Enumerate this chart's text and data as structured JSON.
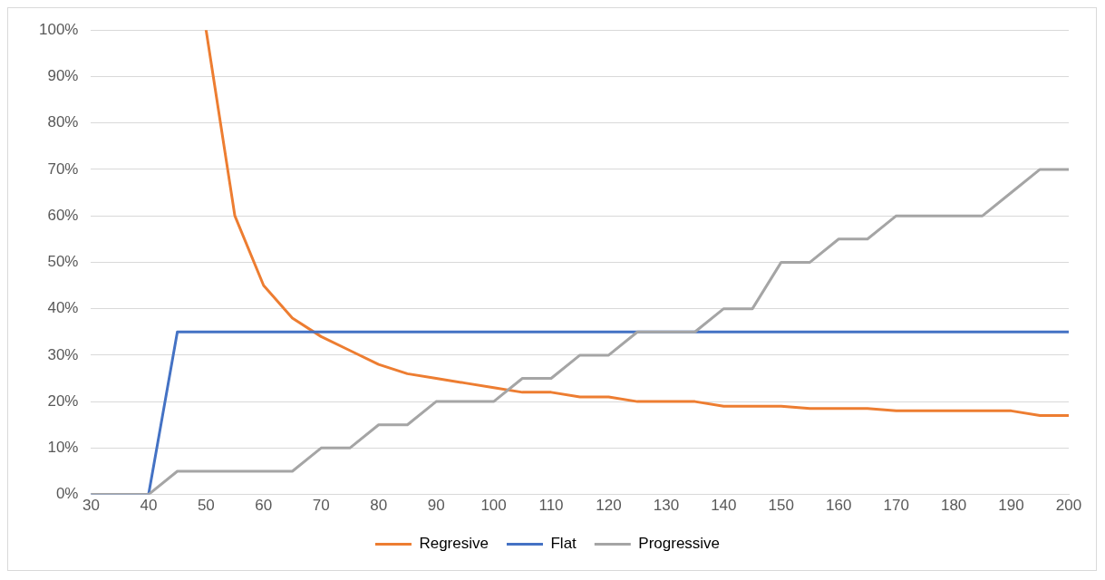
{
  "chart_data": {
    "type": "line",
    "x": [
      30,
      35,
      40,
      45,
      50,
      55,
      60,
      65,
      70,
      75,
      80,
      85,
      90,
      95,
      100,
      105,
      110,
      115,
      120,
      125,
      130,
      135,
      140,
      145,
      150,
      155,
      160,
      165,
      170,
      175,
      180,
      185,
      190,
      195,
      200
    ],
    "series": [
      {
        "name": "Regresive",
        "color": "#ed7d31",
        "values": [
          null,
          null,
          null,
          null,
          100,
          60,
          45,
          38,
          34,
          31,
          28,
          26,
          25,
          24,
          23,
          22,
          22,
          21,
          21,
          20,
          20,
          20,
          19,
          19,
          19,
          18.5,
          18.5,
          18.5,
          18,
          18,
          18,
          18,
          18,
          17,
          17
        ]
      },
      {
        "name": "Flat",
        "color": "#4472c4",
        "values": [
          0,
          0,
          0,
          35,
          35,
          35,
          35,
          35,
          35,
          35,
          35,
          35,
          35,
          35,
          35,
          35,
          35,
          35,
          35,
          35,
          35,
          35,
          35,
          35,
          35,
          35,
          35,
          35,
          35,
          35,
          35,
          35,
          35,
          35,
          35
        ]
      },
      {
        "name": "Progressive",
        "color": "#a5a5a5",
        "values": [
          0,
          0,
          0,
          5,
          5,
          5,
          5,
          5,
          10,
          10,
          15,
          15,
          20,
          20,
          20,
          25,
          25,
          30,
          30,
          35,
          35,
          35,
          40,
          40,
          50,
          50,
          55,
          55,
          60,
          60,
          60,
          60,
          65,
          70,
          70
        ]
      }
    ],
    "xlim": [
      30,
      200
    ],
    "xticks": [
      30,
      40,
      50,
      60,
      70,
      80,
      90,
      100,
      110,
      120,
      130,
      140,
      150,
      160,
      170,
      180,
      190,
      200
    ],
    "ylim": [
      0,
      100
    ],
    "yticks": [
      {
        "value": 0,
        "label": "0%"
      },
      {
        "value": 10,
        "label": "10%"
      },
      {
        "value": 20,
        "label": "20%"
      },
      {
        "value": 30,
        "label": "30%"
      },
      {
        "value": 40,
        "label": "40%"
      },
      {
        "value": 50,
        "label": "50%"
      },
      {
        "value": 60,
        "label": "60%"
      },
      {
        "value": 70,
        "label": "70%"
      },
      {
        "value": 80,
        "label": "80%"
      },
      {
        "value": 90,
        "label": "90%"
      },
      {
        "value": 100,
        "label": "100%"
      }
    ],
    "grid": "y",
    "legend": "bottom",
    "marker": "none",
    "line_style": "solid"
  }
}
